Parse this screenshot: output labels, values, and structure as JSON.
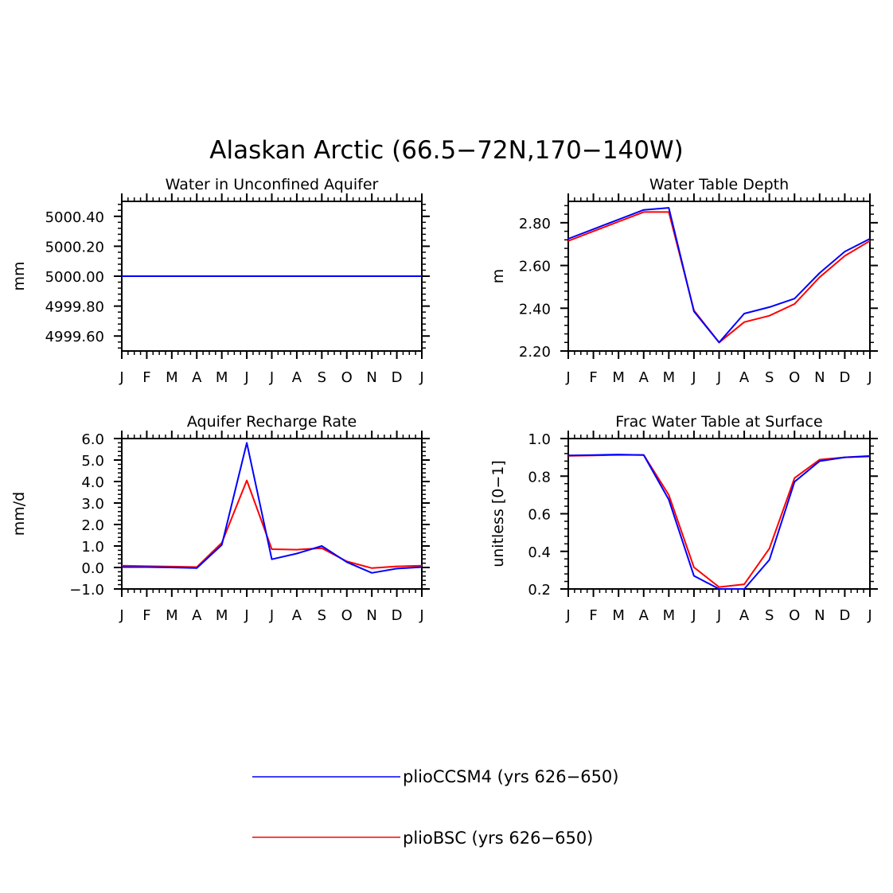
{
  "figure_title": "Alaskan Arctic (66.5−72N,170−140W)",
  "colors": {
    "plioCCSM4": "#0000ff",
    "plioBSC": "#ff0000",
    "axis": "#000000"
  },
  "legend": [
    {
      "key": "plioCCSM4",
      "label": "plioCCSM4 (yrs 626−650)"
    },
    {
      "key": "plioBSC",
      "label": "plioBSC (yrs 626−650)"
    }
  ],
  "chart_data": [
    {
      "type": "line",
      "title": "Water in Unconfined Aquifer",
      "ylabel": "mm",
      "xlabel": "",
      "categories": [
        "J",
        "F",
        "M",
        "A",
        "M",
        "J",
        "J",
        "A",
        "S",
        "O",
        "N",
        "D",
        "J"
      ],
      "ylim": [
        4999.5,
        5000.5
      ],
      "yticks": [
        4999.6,
        4999.8,
        5000.0,
        5000.2,
        5000.4
      ],
      "yticklabels": [
        "4999.60",
        "4999.80",
        "5000.00",
        "5000.20",
        "5000.40"
      ],
      "series": [
        {
          "name": "plioBSC",
          "values": [
            5000,
            5000,
            5000,
            5000,
            5000,
            5000,
            5000,
            5000,
            5000,
            5000,
            5000,
            5000,
            5000
          ]
        },
        {
          "name": "plioCCSM4",
          "values": [
            5000,
            5000,
            5000,
            5000,
            5000,
            5000,
            5000,
            5000,
            5000,
            5000,
            5000,
            5000,
            5000
          ]
        }
      ]
    },
    {
      "type": "line",
      "title": "Water Table Depth",
      "ylabel": "m",
      "xlabel": "",
      "categories": [
        "J",
        "F",
        "M",
        "A",
        "M",
        "J",
        "J",
        "A",
        "S",
        "O",
        "N",
        "D",
        "J"
      ],
      "ylim": [
        2.2,
        2.9
      ],
      "yticks": [
        2.2,
        2.4,
        2.6,
        2.8
      ],
      "yticklabels": [
        "2.20",
        "2.40",
        "2.60",
        "2.80"
      ],
      "series": [
        {
          "name": "plioBSC",
          "values": [
            2.715,
            2.76,
            2.805,
            2.85,
            2.85,
            2.39,
            2.24,
            2.335,
            2.365,
            2.42,
            2.545,
            2.645,
            2.715
          ]
        },
        {
          "name": "plioCCSM4",
          "values": [
            2.725,
            2.77,
            2.815,
            2.86,
            2.87,
            2.385,
            2.24,
            2.375,
            2.405,
            2.445,
            2.565,
            2.665,
            2.725
          ]
        }
      ]
    },
    {
      "type": "line",
      "title": "Aquifer Recharge Rate",
      "ylabel": "mm/d",
      "xlabel": "",
      "categories": [
        "J",
        "F",
        "M",
        "A",
        "M",
        "J",
        "J",
        "A",
        "S",
        "O",
        "N",
        "D",
        "J"
      ],
      "ylim": [
        -1.0,
        6.0
      ],
      "yticks": [
        -1.0,
        0.0,
        1.0,
        2.0,
        3.0,
        4.0,
        5.0,
        6.0
      ],
      "yticklabels": [
        "−1.0",
        "0.0",
        "1.0",
        "2.0",
        "3.0",
        "4.0",
        "5.0",
        "6.0"
      ],
      "series": [
        {
          "name": "plioBSC",
          "values": [
            0.08,
            0.06,
            0.04,
            0.02,
            1.15,
            4.05,
            0.85,
            0.83,
            0.9,
            0.28,
            -0.03,
            0.05,
            0.08
          ]
        },
        {
          "name": "plioCCSM4",
          "values": [
            0.02,
            0.02,
            0.0,
            -0.03,
            1.05,
            5.8,
            0.38,
            0.65,
            1.0,
            0.25,
            -0.25,
            -0.05,
            0.02
          ]
        }
      ]
    },
    {
      "type": "line",
      "title": "Frac Water Table at Surface",
      "ylabel": "unitless [0−1]",
      "xlabel": "",
      "categories": [
        "J",
        "F",
        "M",
        "A",
        "M",
        "J",
        "J",
        "A",
        "S",
        "O",
        "N",
        "D",
        "J"
      ],
      "ylim": [
        0.2,
        1.0
      ],
      "yticks": [
        0.2,
        0.4,
        0.6,
        0.8,
        1.0
      ],
      "yticklabels": [
        "0.2",
        "0.4",
        "0.6",
        "0.8",
        "1.0"
      ],
      "series": [
        {
          "name": "plioBSC",
          "values": [
            0.908,
            0.91,
            0.913,
            0.913,
            0.7,
            0.315,
            0.21,
            0.225,
            0.415,
            0.79,
            0.888,
            0.9,
            0.908
          ]
        },
        {
          "name": "plioCCSM4",
          "values": [
            0.91,
            0.912,
            0.915,
            0.912,
            0.675,
            0.27,
            0.2,
            0.2,
            0.355,
            0.77,
            0.88,
            0.9,
            0.905
          ]
        }
      ]
    }
  ]
}
